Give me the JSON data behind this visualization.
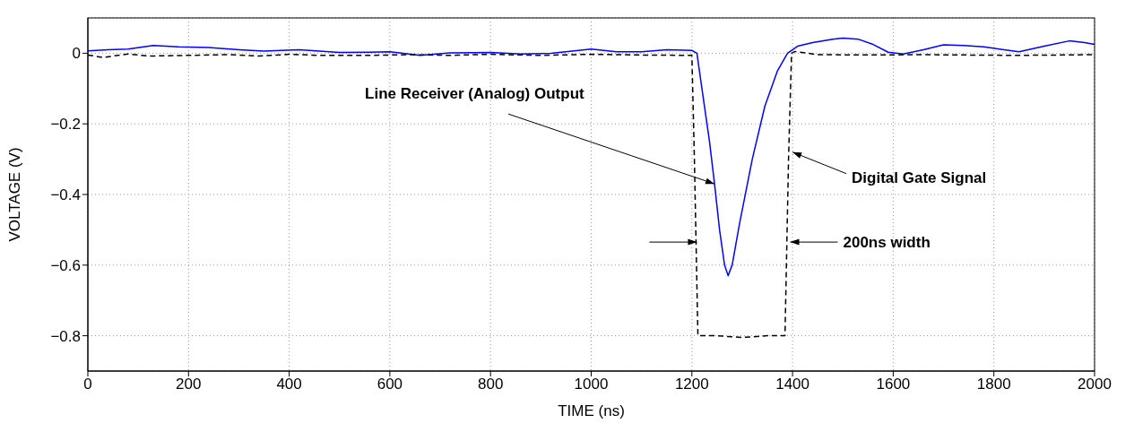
{
  "chart_data": {
    "type": "line",
    "xlabel": "TIME (ns)",
    "ylabel": "VOLTAGE (V)",
    "xlim": [
      0,
      2000
    ],
    "xticks": [
      0,
      200,
      400,
      600,
      800,
      1000,
      1200,
      1400,
      1600,
      1800,
      2000
    ],
    "ylim": [
      -0.9,
      0.1
    ],
    "yticks": [
      -0.8,
      -0.6,
      -0.4,
      -0.2,
      0
    ],
    "grid": true,
    "marker": "none",
    "series": [
      {
        "color": "#0000ff",
        "line_style": "solid",
        "x": [
          0,
          40,
          80,
          130,
          180,
          240,
          300,
          350,
          420,
          500,
          560,
          600,
          660,
          720,
          800,
          860,
          920,
          1000,
          1050,
          1100,
          1150,
          1200,
          1210,
          1220,
          1235,
          1245,
          1255,
          1265,
          1272,
          1280,
          1295,
          1320,
          1345,
          1370,
          1390,
          1410,
          1440,
          1480,
          1500,
          1530,
          1560,
          1590,
          1620,
          1660,
          1700,
          1740,
          1780,
          1820,
          1850,
          1900,
          1950,
          1980,
          2000
        ],
        "values": [
          0.007,
          0.01,
          0.012,
          0.022,
          0.018,
          0.016,
          0.01,
          0.006,
          0.01,
          0.002,
          0.003,
          0.004,
          -0.006,
          0.001,
          0.002,
          -0.002,
          0,
          0.012,
          0.004,
          0.004,
          0.01,
          0.008,
          0,
          -0.1,
          -0.25,
          -0.37,
          -0.5,
          -0.6,
          -0.63,
          -0.6,
          -0.48,
          -0.3,
          -0.15,
          -0.05,
          0,
          0.02,
          0.03,
          0.04,
          0.043,
          0.04,
          0.025,
          0.003,
          -0.002,
          0.01,
          0.024,
          0.022,
          0.018,
          0.01,
          0.004,
          0.02,
          0.035,
          0.03,
          0.025
        ]
      },
      {
        "color": "#000000",
        "line_style": "dashed",
        "x": [
          0,
          30,
          80,
          120,
          200,
          280,
          340,
          400,
          460,
          560,
          640,
          720,
          800,
          900,
          1000,
          1100,
          1200,
          1205,
          1212,
          1250,
          1300,
          1350,
          1385,
          1392,
          1398,
          1405,
          1450,
          1550,
          1650,
          1750,
          1850,
          2000
        ],
        "values": [
          -0.005,
          -0.012,
          -0.002,
          -0.008,
          -0.006,
          -0.004,
          -0.008,
          -0.003,
          -0.006,
          -0.006,
          -0.004,
          -0.006,
          -0.003,
          -0.006,
          -0.003,
          -0.005,
          -0.006,
          -0.3,
          -0.8,
          -0.8,
          -0.805,
          -0.8,
          -0.8,
          -0.3,
          0,
          0.005,
          -0.004,
          -0.005,
          -0.004,
          -0.005,
          -0.006,
          -0.004
        ]
      }
    ],
    "annotations": [
      {
        "text": "Line Receiver (Analog) Output",
        "x": 1245,
        "y": -0.37
      },
      {
        "text": "Digital Gate Signal",
        "x": 1400,
        "y": -0.28
      },
      "200ns width"
    ]
  }
}
